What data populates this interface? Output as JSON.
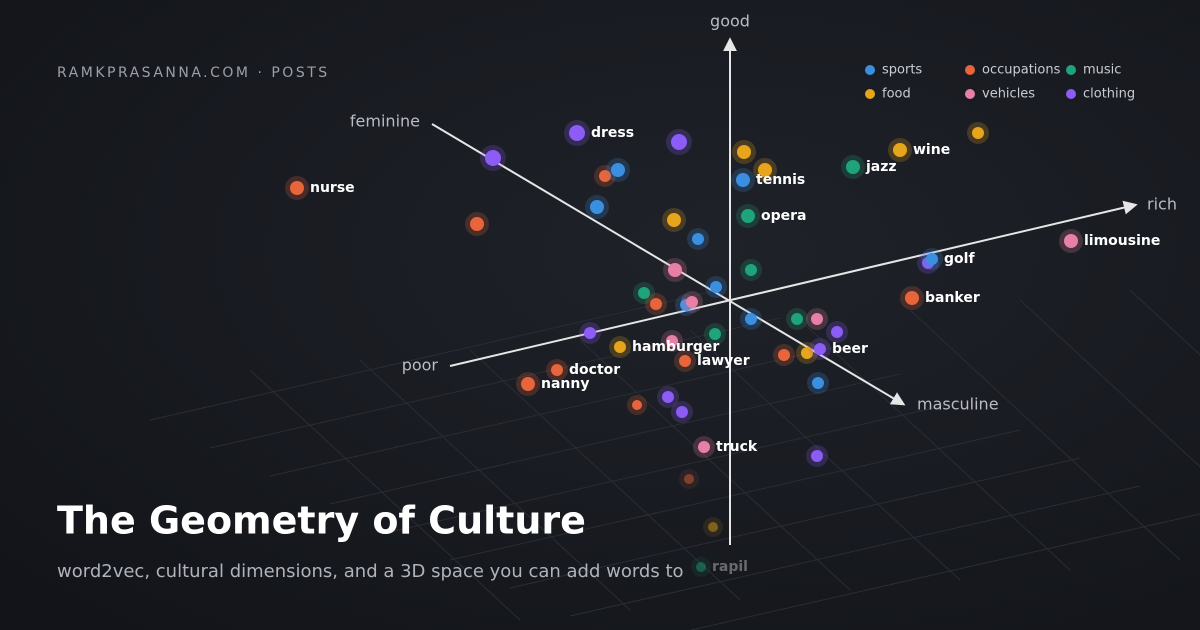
{
  "site": "RAMKPRASANNA.COM · POSTS",
  "title": "The Geometry of Culture",
  "subtitle": "word2vec, cultural dimensions, and a 3D space you can add words to",
  "axes": {
    "up": "good",
    "right": "rich",
    "left": "poor",
    "back": "feminine",
    "front": "masculine"
  },
  "legend": [
    {
      "name": "sports",
      "color": "#3b8fe0"
    },
    {
      "name": "occupations",
      "color": "#e8643a"
    },
    {
      "name": "music",
      "color": "#1fa37a"
    },
    {
      "name": "food",
      "color": "#e6a51a"
    },
    {
      "name": "vehicles",
      "color": "#e87fa6"
    },
    {
      "name": "clothing",
      "color": "#8b5cf6"
    }
  ],
  "points": [
    {
      "label": "dress",
      "category": "clothing"
    },
    {
      "category": "clothing"
    },
    {
      "category": "clothing"
    },
    {
      "category": "occupations"
    },
    {
      "category": "sports"
    },
    {
      "category": "food"
    },
    {
      "category": "food"
    },
    {
      "label": "tennis",
      "category": "sports"
    },
    {
      "label": "jazz",
      "category": "music"
    },
    {
      "label": "wine",
      "category": "food"
    },
    {
      "category": "food"
    },
    {
      "label": "nurse",
      "category": "occupations"
    },
    {
      "category": "sports"
    },
    {
      "category": "occupations"
    },
    {
      "category": "food"
    },
    {
      "label": "opera",
      "category": "music"
    },
    {
      "category": "sports"
    },
    {
      "label": "limousine",
      "category": "vehicles"
    },
    {
      "category": "clothing"
    },
    {
      "label": "golf",
      "category": "sports"
    },
    {
      "category": "music"
    },
    {
      "category": "vehicles"
    },
    {
      "category": "sports"
    },
    {
      "category": "music"
    },
    {
      "category": "occupations"
    },
    {
      "category": "sports"
    },
    {
      "category": "vehicles"
    },
    {
      "label": "banker",
      "category": "occupations"
    },
    {
      "category": "sports"
    },
    {
      "category": "music"
    },
    {
      "category": "vehicles"
    },
    {
      "category": "clothing"
    },
    {
      "category": "clothing"
    },
    {
      "category": "music"
    },
    {
      "category": "vehicles"
    },
    {
      "label": "hamburger",
      "category": "food"
    },
    {
      "label": "lawyer",
      "category": "occupations"
    },
    {
      "category": "occupations"
    },
    {
      "category": "food"
    },
    {
      "label": "beer",
      "category": "clothing"
    },
    {
      "label": "doctor",
      "category": "occupations"
    },
    {
      "label": "nanny",
      "category": "occupations"
    },
    {
      "category": "sports"
    },
    {
      "category": "clothing"
    },
    {
      "category": "occupations"
    },
    {
      "category": "clothing"
    },
    {
      "label": "truck",
      "category": "vehicles"
    },
    {
      "category": "clothing"
    },
    {
      "category": "occupations"
    },
    {
      "category": "food"
    },
    {
      "label": "rapil",
      "category": "music"
    }
  ]
}
